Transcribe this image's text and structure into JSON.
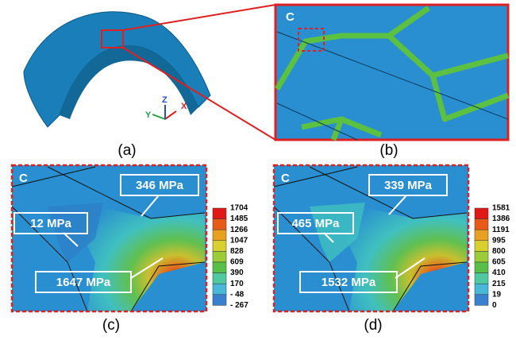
{
  "panels": [
    {
      "label": "(a)",
      "axes": [
        "X",
        "Y",
        "Z"
      ]
    },
    {
      "label": "(b)",
      "region": "C"
    },
    {
      "label": "(c)",
      "region": "C",
      "callouts": [
        "346 MPa",
        "12 MPa",
        "1647 MPa"
      ],
      "colorbar": [
        "1704",
        "1485",
        "1266",
        "1047",
        "828",
        "609",
        "390",
        "170",
        "- 48",
        "- 267"
      ]
    },
    {
      "label": "(d)",
      "region": "C",
      "callouts": [
        "339 MPa",
        "465 MPa",
        "1532 MPa"
      ],
      "colorbar": [
        "1581",
        "1386",
        "1191",
        "995",
        "800",
        "605",
        "410",
        "215",
        "19",
        "0"
      ]
    }
  ]
}
